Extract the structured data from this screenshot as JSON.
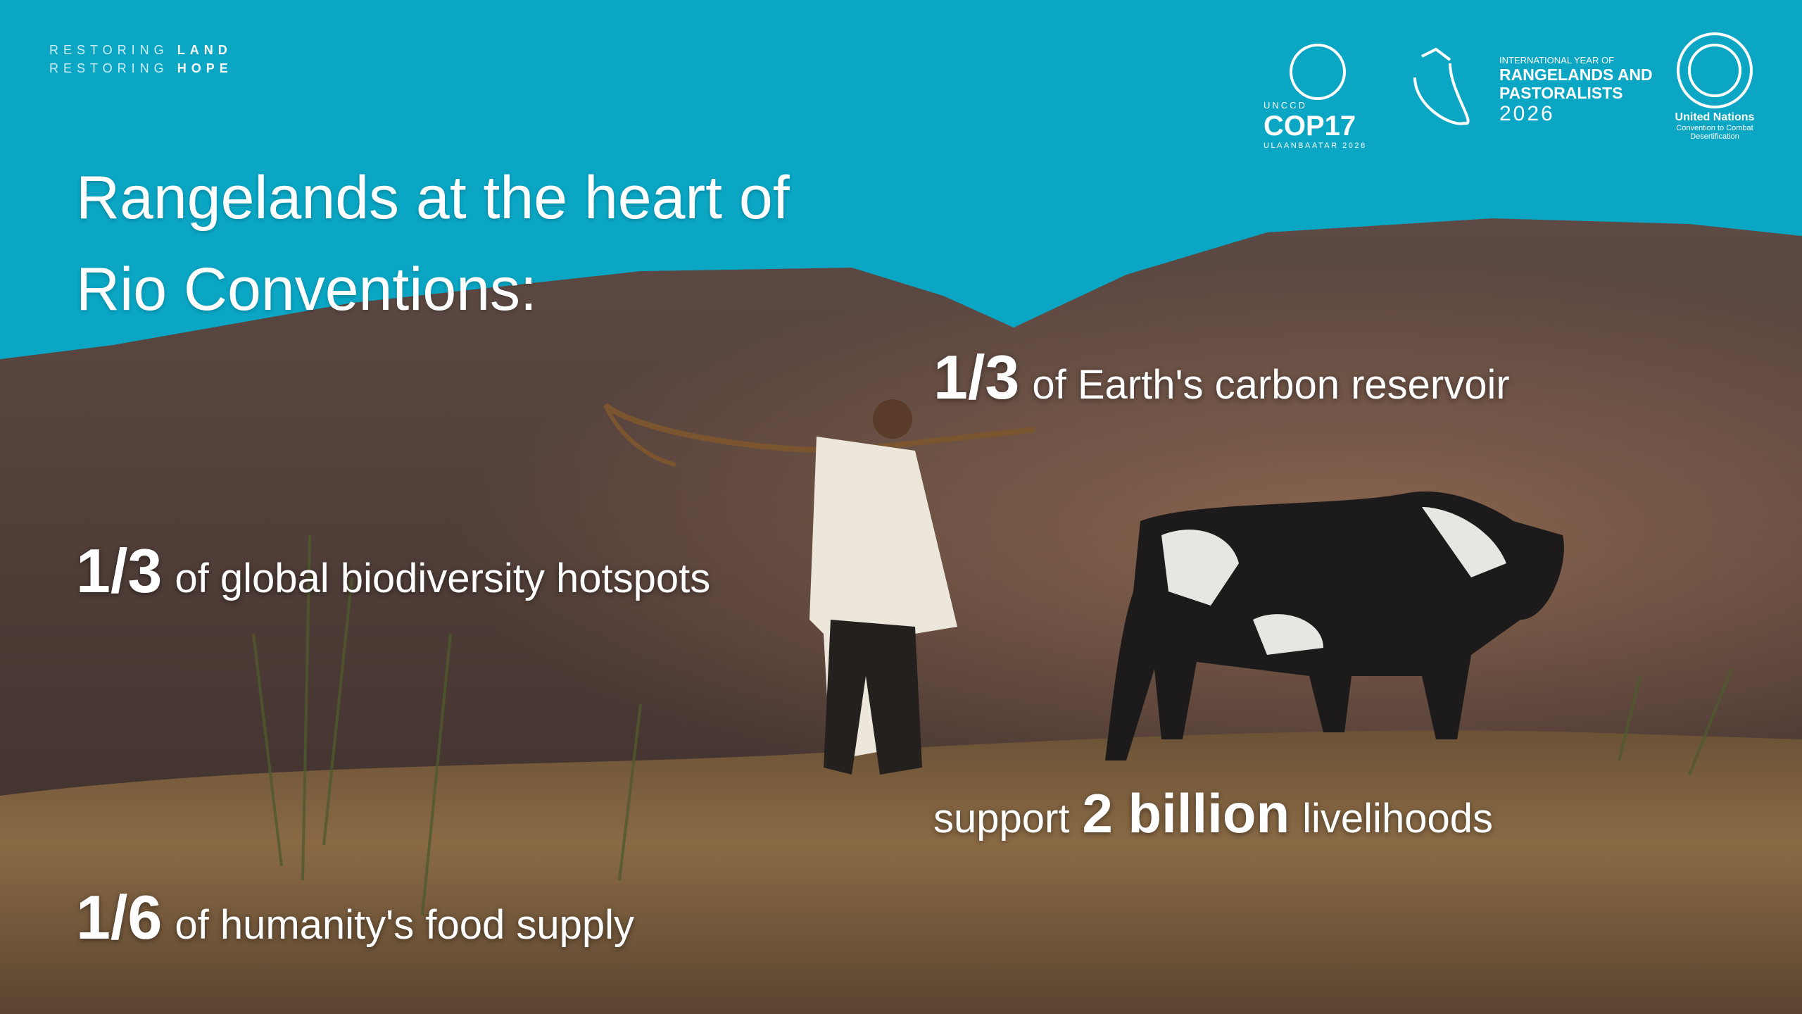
{
  "header": {
    "tagline": [
      {
        "prefix": "RESTORING",
        "emphasis": "LAND"
      },
      {
        "prefix": "RESTORING",
        "emphasis": "HOPE"
      }
    ]
  },
  "logos": {
    "cop": {
      "org": "UNCCD",
      "name": "COP17",
      "place": "ULAANBAATAR 2026"
    },
    "year": {
      "line1": "INTERNATIONAL YEAR OF",
      "line2": "RANGELANDS AND",
      "line3": "PASTORALISTS",
      "year": "2026"
    },
    "un": {
      "name": "United Nations",
      "sub1": "Convention to Combat",
      "sub2": "Desertification"
    }
  },
  "title": [
    "Rangelands at the heart of",
    "Rio Conventions:"
  ],
  "stats": [
    {
      "figure": "1/3",
      "text": "of Earth's carbon reservoir"
    },
    {
      "figure": "1/3",
      "text": "of global biodiversity hotspots"
    },
    {
      "prefix": "support",
      "figure": "2 billion",
      "text": "livelihoods"
    },
    {
      "figure": "1/6",
      "text": "of humanity's food supply"
    }
  ]
}
